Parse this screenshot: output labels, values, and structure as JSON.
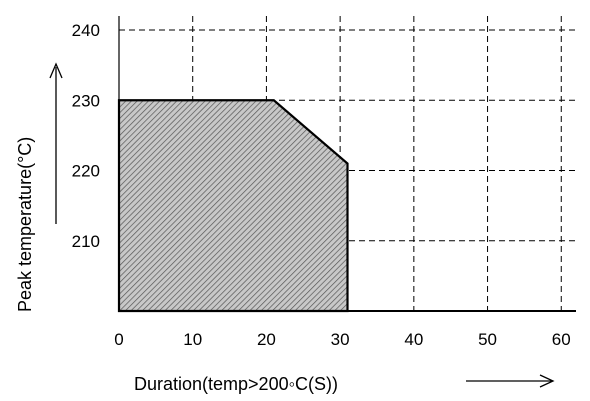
{
  "chart_data": {
    "type": "area",
    "title": "",
    "xlabel": "Duration(temp>200◦C(S))",
    "ylabel": "Peak temperature(°C)",
    "xlim": [
      0,
      62
    ],
    "ylim": [
      200,
      242
    ],
    "x_ticks": [
      0,
      10,
      20,
      30,
      40,
      50,
      60
    ],
    "y_ticks": [
      210,
      220,
      230,
      240
    ],
    "grid": true,
    "grid_style": "dashed",
    "series": [
      {
        "points": [
          {
            "x": 0,
            "y": 200
          },
          {
            "x": 0,
            "y": 230
          },
          {
            "x": 21,
            "y": 230
          },
          {
            "x": 31,
            "y": 221
          },
          {
            "x": 31,
            "y": 200
          }
        ],
        "fill": "hatched"
      }
    ]
  },
  "colors": {
    "axis": "#000000",
    "grid": "#000000",
    "hatch_background": "#c8c8c8",
    "hatch_line": "#555555"
  }
}
